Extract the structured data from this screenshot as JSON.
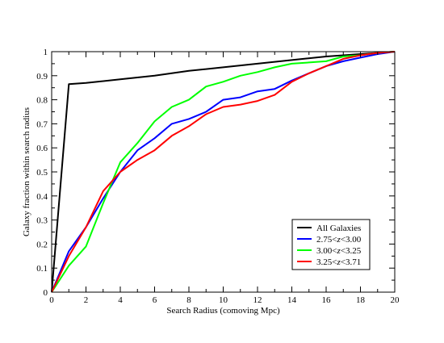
{
  "chart_data": {
    "type": "line",
    "title": "",
    "xlabel": "Search Radius (comoving Mpc)",
    "ylabel": "Galaxy fraction within search radius",
    "xlim": [
      0,
      20
    ],
    "ylim": [
      0,
      1
    ],
    "x_ticks": [
      0,
      2,
      4,
      6,
      8,
      10,
      12,
      14,
      16,
      18,
      20
    ],
    "y_ticks": [
      0,
      0.1,
      0.2,
      0.3,
      0.4,
      0.5,
      0.6,
      0.7,
      0.8,
      0.9,
      1
    ],
    "y_tick_labels": [
      "0",
      "0.1",
      "0.2",
      "0.3",
      "0.4",
      "0.5",
      "0.6",
      "0.7",
      "0.8",
      "0.9",
      "1"
    ],
    "grid": false,
    "legend_position": "bottom-right",
    "series": [
      {
        "name": "All Galaxies",
        "color": "#000000",
        "x": [
          0,
          1,
          2,
          4,
          6,
          8,
          10,
          12,
          14,
          16,
          18,
          20
        ],
        "y": [
          0.0,
          0.865,
          0.87,
          0.885,
          0.9,
          0.92,
          0.935,
          0.95,
          0.965,
          0.98,
          0.99,
          1.0
        ]
      },
      {
        "name": "2.75<z<3.00",
        "name_parts": [
          "2.75<",
          "z",
          "<3.00"
        ],
        "color": "#0000ff",
        "x": [
          0,
          1,
          2,
          3,
          4,
          5,
          6,
          7,
          8,
          9,
          10,
          11,
          12,
          13,
          14,
          15,
          16,
          17,
          18,
          19,
          20
        ],
        "y": [
          0.0,
          0.17,
          0.27,
          0.39,
          0.5,
          0.59,
          0.64,
          0.7,
          0.72,
          0.75,
          0.8,
          0.81,
          0.835,
          0.845,
          0.88,
          0.91,
          0.94,
          0.96,
          0.975,
          0.99,
          1.0
        ]
      },
      {
        "name": "3.00<z<3.25",
        "name_parts": [
          "3.00<",
          "z",
          "<3.25"
        ],
        "color": "#00ff00",
        "x": [
          0,
          1,
          2,
          3,
          4,
          5,
          6,
          7,
          8,
          9,
          10,
          11,
          12,
          13,
          14,
          15,
          16,
          17,
          18,
          19,
          20
        ],
        "y": [
          0.0,
          0.11,
          0.19,
          0.37,
          0.54,
          0.62,
          0.71,
          0.77,
          0.8,
          0.855,
          0.875,
          0.9,
          0.915,
          0.935,
          0.95,
          0.955,
          0.96,
          0.98,
          0.985,
          0.995,
          1.0
        ]
      },
      {
        "name": "3.25<z<3.71",
        "name_parts": [
          "3.25<",
          "z",
          "<3.71"
        ],
        "color": "#ff0000",
        "x": [
          0,
          1,
          2,
          3,
          4,
          5,
          6,
          7,
          8,
          9,
          10,
          11,
          12,
          13,
          14,
          15,
          16,
          17,
          18,
          19,
          20
        ],
        "y": [
          0.0,
          0.15,
          0.27,
          0.42,
          0.5,
          0.55,
          0.59,
          0.65,
          0.69,
          0.74,
          0.77,
          0.78,
          0.795,
          0.82,
          0.875,
          0.91,
          0.94,
          0.97,
          0.985,
          0.995,
          1.0
        ]
      }
    ]
  }
}
